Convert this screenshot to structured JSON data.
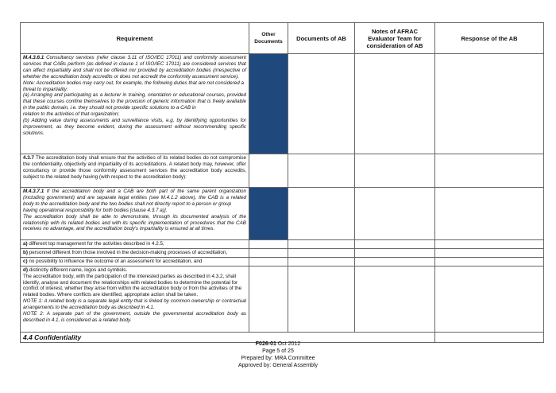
{
  "table": {
    "headers": [
      "Requirement",
      "Other Documents",
      "Documents of AB",
      "Notes of AFRAC  Evaluator Team for consideration of AB",
      "Response of the AB"
    ],
    "rows": {
      "m4361": {
        "label": "M.4.3.6.1",
        "text": " Consultancy services (refer clause 3.11 of ISO/IEC 17011) and conformity assessment services that CABs perform (as defined in clause 1 of ISO/IEC 17011) are considered services that can affect impartiality and shall not be offered nor provided by accreditation bodies (irrespective of whether the accreditation body accredits or does not accredit the conformity assessment service).",
        "note1": "Note: Accreditation bodies may carry out, for example, the following duties that are not considered a threat to impartiality:",
        "note2": "(a) Arranging and participating as a lecturer in training, orientation or educational courses, provided that these courses confine themselves to the provision of generic information that is freely available in the public domain, i.e. they should not provide specific solutions to a CAB in",
        "note3": "relation to the activities of that organization;",
        "note4": "(b) Adding value during assessments and surveillance visits, e.g. by identifying opportunities for improvement, as they become evident, during the assessment without recommending specific solutions."
      },
      "c437": {
        "label": "4.3.7",
        "text": " The accreditation body shall ensure that the activities of its related bodies do not compromise the confidentiality, objectivity and impartiality of its accreditations. A related body may, however, offer consultancy or provide those conformity assessment services the accreditation body accredits, subject to the related body having (with respect to the accreditation body):"
      },
      "m4371": {
        "label": "M.4.3.7.1",
        "text": " If the accreditation body and a CAB are both part of the same parent organization (including government) and are separate legal entities (see M.4.1.2 above), the CAB is a related body to the accreditation body and the two bodies shall not directly report to a person or group",
        "text2": "having operational responsibility for both bodies [clause 4.3.7 a)].",
        "text3": "The accreditation body shall be able to demonstrate, through its documented analysis of the relationship with its related bodies and with its specific implementation of procedures that the CAB receives no advantage, and the accreditation body's impartiality is ensured at all times."
      },
      "a": {
        "label": "a)",
        "text": " different top management for the activities described in 4.2.5,"
      },
      "b": {
        "label": "b)",
        "text": " personnel different from those involved in the decision-making processes of accreditation,"
      },
      "c": {
        "label": "c)",
        "text": " no possibility to influence the outcome of an assessment for accreditation, and"
      },
      "d": {
        "label": "d)",
        "text": " distinctly different name, logos and symbols.",
        "text2": "The accreditation body, with the participation of the interested parties as described in 4.3.2, shall identify, analyse and document the relationships with related bodies to determine the potential for conflict of interest, whether they arise from within the accreditation body or from the activities of the related bodies. Where conflicts are identified, appropriate action shall be taken.",
        "note1": "NOTE 1: A related body is a separate legal entity that is linked by common ownership or contractual arrangements to the accreditation body as described in 4.1.",
        "note2": "NOTE 2: A separate part of the government, outside the governmental accreditation body as described in 4.1, is considered as a related body."
      },
      "section": "4.4 Confidentiality"
    }
  },
  "footer": {
    "code": "F026-01",
    "date": " Oct 2012",
    "page": "Page 5 of 25",
    "prepared": "Prepared by: MRA Committee",
    "approved": "Approved by: General Assembly"
  },
  "colors": {
    "shaded_cell": "#1f497d"
  }
}
